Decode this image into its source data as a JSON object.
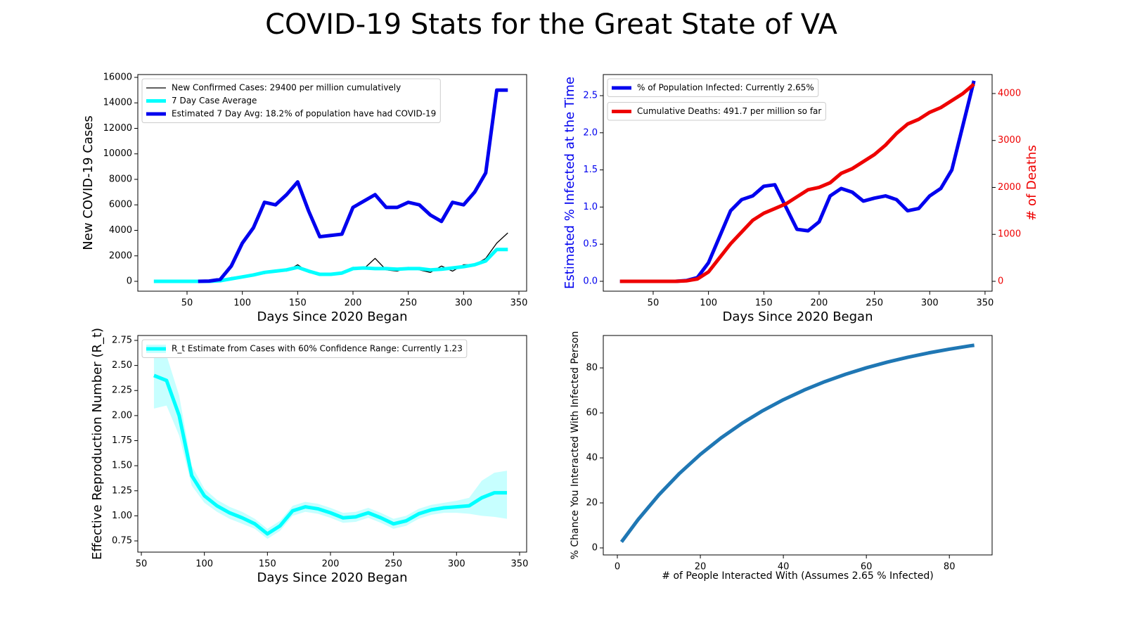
{
  "title": "COVID-19 Stats for the Great State of VA",
  "chart_data": [
    {
      "type": "line",
      "xlabel": "Days Since 2020 Began",
      "ylabel": "New COVID-19 Cases",
      "legend": "upper left",
      "x": [
        20,
        30,
        40,
        50,
        60,
        70,
        80,
        90,
        100,
        110,
        120,
        130,
        140,
        150,
        160,
        170,
        180,
        190,
        200,
        210,
        220,
        230,
        240,
        250,
        260,
        270,
        280,
        290,
        300,
        310,
        320,
        330,
        340
      ],
      "xlim": [
        5.5,
        357
      ],
      "xticks": [
        50,
        100,
        150,
        200,
        250,
        300,
        350
      ],
      "ylim": [
        -772,
        16220
      ],
      "yticks": [
        0,
        2000,
        4000,
        6000,
        8000,
        10000,
        12000,
        14000,
        16000
      ],
      "series": [
        {
          "name": "New Confirmed Cases: 29400 per million cumulatively",
          "color": "black",
          "values": [
            null,
            null,
            null,
            null,
            0,
            10,
            60,
            300,
            400,
            500,
            600,
            900,
            800,
            1300,
            700,
            500,
            500,
            700,
            1100,
            1000,
            1800,
            900,
            800,
            1100,
            900,
            700,
            1200,
            800,
            1300,
            1300,
            1800,
            3000,
            3800
          ]
        },
        {
          "name": "7 Day Case Average",
          "color": "cyan",
          "values": [
            0,
            0,
            0,
            0,
            0,
            0,
            50,
            200,
            350,
            500,
            700,
            800,
            900,
            1100,
            800,
            550,
            550,
            650,
            1000,
            1050,
            1000,
            1000,
            950,
            1000,
            1000,
            900,
            950,
            1050,
            1150,
            1300,
            1600,
            2500,
            2500
          ]
        },
        {
          "name": "Estimated 7 Day Avg: 18.2% of population have had COVID-19",
          "color": "#0000ee",
          "values": [
            null,
            null,
            null,
            null,
            0,
            20,
            150,
            1200,
            3000,
            4200,
            6200,
            6000,
            6800,
            7800,
            5500,
            3500,
            3600,
            3700,
            5800,
            6300,
            6800,
            5800,
            5800,
            6200,
            6000,
            5200,
            4700,
            6200,
            6000,
            7000,
            8500,
            15000,
            15000
          ]
        }
      ]
    },
    {
      "type": "line",
      "xlabel": "Days Since 2020 Began",
      "ylabel": "Estimated % Infected at the Time",
      "y2label": "# of Deaths",
      "legend": "upper left",
      "x": [
        20,
        30,
        40,
        50,
        60,
        70,
        80,
        90,
        100,
        110,
        120,
        130,
        140,
        150,
        160,
        170,
        180,
        190,
        200,
        210,
        220,
        230,
        240,
        250,
        260,
        270,
        280,
        290,
        300,
        310,
        320,
        330,
        340
      ],
      "xlim": [
        4.9,
        356.4
      ],
      "xticks": [
        50,
        100,
        150,
        200,
        250,
        300,
        350
      ],
      "ylim": [
        -0.133,
        2.784
      ],
      "yticks": [
        {
          "value": 0,
          "label": "0.0"
        },
        0.5,
        {
          "value": 1,
          "label": "1.0"
        },
        1.5,
        {
          "value": 2,
          "label": "2.0"
        },
        2.5
      ],
      "y2lim": [
        -210,
        4404
      ],
      "y2ticks": [
        0,
        1000,
        2000,
        3000,
        4000
      ],
      "series": [
        {
          "name": "% of Population Infected: Currently 2.65%",
          "color": "#0000ee",
          "values": [
            0,
            0,
            0,
            0,
            0,
            0,
            0.01,
            0.05,
            0.25,
            0.6,
            0.95,
            1.1,
            1.15,
            1.28,
            1.3,
            1.0,
            0.7,
            0.68,
            0.8,
            1.15,
            1.25,
            1.2,
            1.08,
            1.12,
            1.15,
            1.1,
            0.95,
            0.98,
            1.15,
            1.25,
            1.5,
            2.1,
            2.7
          ]
        },
        {
          "name": "Cumulative Deaths: 491.7 per million so far",
          "color": "#ee0000",
          "axis": "y2",
          "values": [
            0,
            0,
            0,
            0,
            0,
            0,
            10,
            50,
            200,
            500,
            800,
            1050,
            1300,
            1450,
            1550,
            1650,
            1800,
            1950,
            2000,
            2100,
            2300,
            2400,
            2550,
            2700,
            2900,
            3150,
            3350,
            3450,
            3600,
            3700,
            3850,
            4000,
            4200
          ]
        }
      ]
    },
    {
      "type": "line",
      "xlabel": "Days Since 2020 Began",
      "ylabel": "Effective Reproduction Number (R_t)",
      "legend": "upper left",
      "x": [
        60,
        70,
        80,
        90,
        100,
        110,
        120,
        130,
        140,
        150,
        160,
        170,
        180,
        190,
        200,
        210,
        220,
        230,
        240,
        250,
        260,
        270,
        280,
        290,
        300,
        310,
        320,
        330,
        340
      ],
      "xlim": [
        47.2,
        355.6
      ],
      "xticks": [
        50,
        100,
        150,
        200,
        250,
        300,
        350
      ],
      "ylim": [
        0.638,
        2.799
      ],
      "yticks": [
        0.75,
        {
          "value": 1,
          "label": "1.00"
        },
        1.25,
        {
          "value": 1.5,
          "label": "1.50"
        },
        1.75,
        {
          "value": 2,
          "label": "2.00"
        },
        2.25,
        {
          "value": 2.5,
          "label": "2.50"
        },
        2.75
      ],
      "series": [
        {
          "name": "R_t Estimate from Cases with 60% Confidence Range: Currently 1.23",
          "color": "cyan",
          "values": [
            2.4,
            2.35,
            2.0,
            1.4,
            1.2,
            1.1,
            1.03,
            0.98,
            0.92,
            0.82,
            0.9,
            1.05,
            1.09,
            1.07,
            1.03,
            0.98,
            0.99,
            1.03,
            0.98,
            0.92,
            0.95,
            1.02,
            1.06,
            1.08,
            1.09,
            1.1,
            1.18,
            1.23,
            1.23
          ],
          "upper": [
            2.75,
            2.6,
            2.2,
            1.5,
            1.27,
            1.16,
            1.09,
            1.04,
            0.97,
            0.87,
            0.95,
            1.1,
            1.14,
            1.12,
            1.08,
            1.03,
            1.04,
            1.08,
            1.03,
            0.97,
            1.0,
            1.07,
            1.11,
            1.13,
            1.15,
            1.18,
            1.35,
            1.43,
            1.45
          ],
          "lower": [
            2.07,
            2.1,
            1.8,
            1.3,
            1.13,
            1.04,
            0.97,
            0.92,
            0.87,
            0.77,
            0.85,
            1.0,
            1.04,
            1.02,
            0.98,
            0.93,
            0.94,
            0.98,
            0.93,
            0.87,
            0.9,
            0.97,
            1.01,
            1.03,
            1.03,
            1.02,
            1.0,
            0.99,
            0.97
          ]
        }
      ]
    },
    {
      "type": "line",
      "xlabel": "# of People Interacted With (Assumes 2.65 % Infected)",
      "ylabel": "% Chance You Interacted With Infected Person",
      "x": [
        1,
        5,
        10,
        15,
        20,
        25,
        30,
        35,
        40,
        45,
        50,
        55,
        60,
        65,
        70,
        75,
        80,
        85,
        86
      ],
      "xlim": [
        -3.39,
        90.3
      ],
      "xticks": [
        0,
        20,
        40,
        60,
        80
      ],
      "ylim": [
        -3.125,
        94.4
      ],
      "yticks": [
        0,
        20,
        40,
        60,
        80
      ],
      "series": [
        {
          "color": "#1f77b4",
          "values": [
            2.65,
            12.57,
            23.55,
            33.16,
            41.56,
            48.9,
            55.32,
            60.94,
            65.85,
            70.14,
            73.89,
            77.17,
            80.04,
            82.55,
            84.74,
            86.66,
            88.33,
            89.8,
            90.07
          ]
        }
      ]
    }
  ]
}
